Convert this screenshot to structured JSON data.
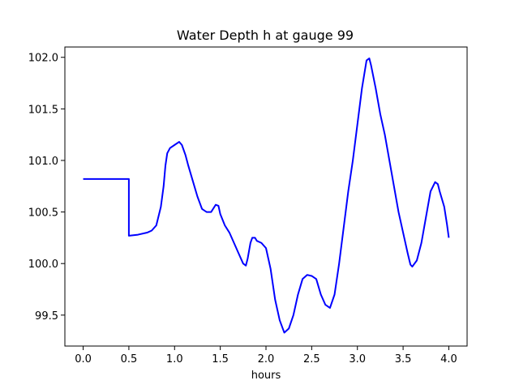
{
  "chart_data": {
    "type": "line",
    "title": "Water Depth h at gauge 99",
    "xlabel": "hours",
    "ylabel": "",
    "xlim": [
      -0.2,
      4.2
    ],
    "ylim": [
      99.2,
      102.1
    ],
    "xticks": [
      0.0,
      0.5,
      1.0,
      1.5,
      2.0,
      2.5,
      3.0,
      3.5,
      4.0
    ],
    "xtick_labels": [
      "0.0",
      "0.5",
      "1.0",
      "1.5",
      "2.0",
      "2.5",
      "3.0",
      "3.5",
      "4.0"
    ],
    "yticks": [
      99.5,
      100.0,
      100.5,
      101.0,
      101.5,
      102.0
    ],
    "ytick_labels": [
      "99.5",
      "100.0",
      "100.5",
      "101.0",
      "101.5",
      "102.0"
    ],
    "grid": false,
    "series": [
      {
        "color": "#0000ff",
        "x": [
          0.0,
          0.1,
          0.2,
          0.3,
          0.4,
          0.49,
          0.5,
          0.5,
          0.6,
          0.7,
          0.75,
          0.8,
          0.85,
          0.88,
          0.9,
          0.92,
          0.95,
          1.0,
          1.05,
          1.08,
          1.12,
          1.15,
          1.2,
          1.25,
          1.3,
          1.35,
          1.4,
          1.45,
          1.48,
          1.5,
          1.55,
          1.6,
          1.65,
          1.7,
          1.75,
          1.78,
          1.8,
          1.83,
          1.85,
          1.88,
          1.9,
          1.95,
          2.0,
          2.05,
          2.1,
          2.15,
          2.2,
          2.25,
          2.3,
          2.35,
          2.4,
          2.45,
          2.5,
          2.55,
          2.6,
          2.65,
          2.7,
          2.75,
          2.8,
          2.85,
          2.9,
          2.95,
          3.0,
          3.05,
          3.1,
          3.13,
          3.15,
          3.2,
          3.25,
          3.3,
          3.35,
          3.4,
          3.45,
          3.5,
          3.55,
          3.58,
          3.6,
          3.65,
          3.7,
          3.75,
          3.8,
          3.85,
          3.88,
          3.9,
          3.95,
          3.98,
          4.0
        ],
        "y": [
          100.82,
          100.82,
          100.82,
          100.82,
          100.82,
          100.82,
          100.82,
          100.27,
          100.28,
          100.3,
          100.32,
          100.37,
          100.55,
          100.75,
          100.95,
          101.07,
          101.12,
          101.15,
          101.18,
          101.15,
          101.05,
          100.95,
          100.8,
          100.65,
          100.53,
          100.5,
          100.5,
          100.57,
          100.56,
          100.48,
          100.37,
          100.3,
          100.2,
          100.1,
          100.0,
          99.98,
          100.05,
          100.2,
          100.25,
          100.25,
          100.22,
          100.2,
          100.15,
          99.95,
          99.65,
          99.45,
          99.33,
          99.37,
          99.5,
          99.7,
          99.85,
          99.89,
          99.88,
          99.85,
          99.7,
          99.6,
          99.57,
          99.7,
          100.0,
          100.35,
          100.7,
          101.0,
          101.35,
          101.7,
          101.97,
          101.99,
          101.92,
          101.7,
          101.45,
          101.25,
          101.0,
          100.75,
          100.5,
          100.3,
          100.1,
          99.99,
          99.97,
          100.03,
          100.2,
          100.45,
          100.7,
          100.79,
          100.77,
          100.7,
          100.55,
          100.38,
          100.25
        ]
      }
    ]
  }
}
